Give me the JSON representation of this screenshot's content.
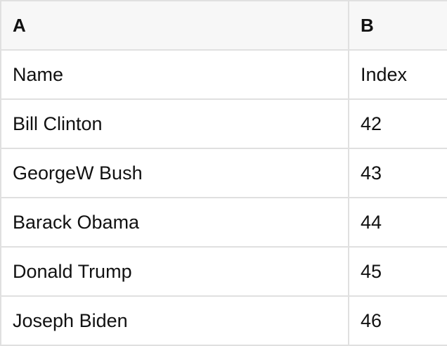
{
  "colors": {
    "header_bg": "#f7f7f7",
    "border": "#e0e0e0",
    "cell_bg": "#ffffff",
    "text": "#111111"
  },
  "table": {
    "column_headers": [
      "A",
      "B"
    ],
    "rows": [
      [
        "Name",
        "Index"
      ],
      [
        "Bill Clinton",
        "42"
      ],
      [
        "GeorgeW Bush",
        "43"
      ],
      [
        "Barack Obama",
        "44"
      ],
      [
        "Donald Trump",
        "45"
      ],
      [
        "Joseph Biden",
        "46"
      ]
    ]
  }
}
